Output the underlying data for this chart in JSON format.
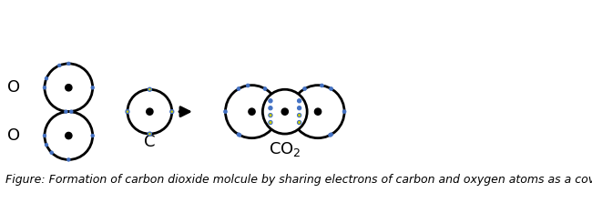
{
  "caption": "Figure: Formation of carbon dioxide molcule by sharing electrons of carbon and oxygen atoms as a covalent bond",
  "caption_fontsize": 9,
  "blue_color": "#4472C4",
  "yellow_color": "#CCCC00",
  "black_color": "#000000",
  "bg_color": "#FFFFFF",
  "circle_linewidth": 2.0,
  "O_label": "O",
  "C_label": "C",
  "CO2_label": "CO$_2$"
}
